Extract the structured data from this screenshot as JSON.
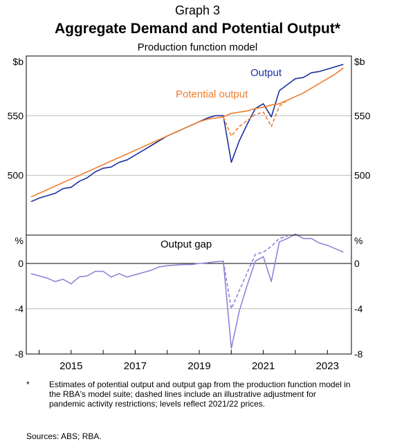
{
  "graph_number": "Graph 3",
  "title": "Aggregate Demand and Potential Output*",
  "subtitle": "Production function model",
  "footnote": {
    "marker": "*",
    "text": "Estimates of potential output and output gap from the production function model in the RBA's model suite; dashed lines include an illustrative adjustment for pandemic activity restrictions; levels reflect 2021/22 prices."
  },
  "sources": "Sources: ABS; RBA.",
  "colors": {
    "output": "#1a2f9e",
    "potential": "#f07c2a",
    "gap": "#9381d8",
    "axis": "#000000",
    "grid": "#bdbdbd"
  },
  "chart_data": [
    {
      "type": "line",
      "panel": "top",
      "xlim": [
        2013.6,
        2023.75
      ],
      "ylim": [
        450,
        600
      ],
      "y_unit_left": "$b",
      "y_unit_right": "$b",
      "yticks": [
        500,
        550
      ],
      "ytick_labels": [
        "500",
        "550"
      ],
      "grid": true,
      "series": [
        {
          "name": "Output",
          "color": "#1a2f9e",
          "style": "solid",
          "x": [
            2013.75,
            2014.0,
            2014.25,
            2014.5,
            2014.75,
            2015.0,
            2015.25,
            2015.5,
            2015.75,
            2016.0,
            2016.25,
            2016.5,
            2016.75,
            2017.0,
            2017.25,
            2017.5,
            2017.75,
            2018.0,
            2018.25,
            2018.5,
            2018.75,
            2019.0,
            2019.25,
            2019.5,
            2019.75,
            2020.0,
            2020.25,
            2020.5,
            2020.75,
            2021.0,
            2021.25,
            2021.5,
            2021.75,
            2022.0,
            2022.25,
            2022.5,
            2022.75,
            2023.0,
            2023.25,
            2023.5
          ],
          "y": [
            478,
            481,
            483,
            485,
            489,
            490,
            495,
            498,
            503,
            506,
            507,
            511,
            513,
            517,
            521,
            525,
            529,
            533,
            536,
            539,
            542,
            545,
            548,
            550,
            550,
            511,
            529,
            543,
            556,
            560,
            549,
            571,
            576,
            581,
            582,
            586,
            587,
            589,
            591,
            593
          ]
        },
        {
          "name": "Potential output",
          "color": "#f07c2a",
          "style": "solid",
          "x": [
            2013.75,
            2014.0,
            2014.25,
            2014.5,
            2014.75,
            2015.0,
            2015.25,
            2015.5,
            2015.75,
            2016.0,
            2016.25,
            2016.5,
            2016.75,
            2017.0,
            2017.25,
            2017.5,
            2017.75,
            2018.0,
            2018.25,
            2018.5,
            2018.75,
            2019.0,
            2019.25,
            2019.5,
            2019.75,
            2020.0,
            2020.25,
            2020.5,
            2020.75,
            2021.0,
            2021.25,
            2021.5,
            2021.75,
            2022.0,
            2022.25,
            2022.5,
            2022.75,
            2023.0,
            2023.25,
            2023.5
          ],
          "y": [
            482,
            485,
            488,
            491,
            494,
            497,
            500,
            503,
            506,
            509,
            512,
            515,
            518,
            521,
            524,
            527,
            530,
            533,
            536,
            539,
            542,
            545,
            547,
            548,
            549,
            552,
            553,
            554,
            556,
            557,
            559,
            560,
            563,
            566,
            569,
            573,
            577,
            581,
            585,
            590
          ]
        },
        {
          "name": "",
          "color": "#f07c2a",
          "style": "dashed",
          "x": [
            2019.75,
            2020.0,
            2020.25,
            2020.5,
            2020.75,
            2021.0,
            2021.25,
            2021.5,
            2021.75
          ],
          "y": [
            549,
            533,
            541,
            546,
            551,
            553,
            541,
            558,
            563
          ]
        }
      ],
      "annotations": [
        {
          "text": "Output",
          "color": "#1a2f9e"
        },
        {
          "text": "Potential output",
          "color": "#f07c2a"
        }
      ]
    },
    {
      "type": "line",
      "panel": "bottom",
      "title": "Output gap",
      "xlim": [
        2013.6,
        2023.75
      ],
      "ylim": [
        -8,
        2.5
      ],
      "y_unit_left": "%",
      "y_unit_right": "%",
      "yticks": [
        -8,
        -4,
        0
      ],
      "ytick_labels": [
        "-8",
        "-4",
        "0"
      ],
      "xticks": [
        2015,
        2017,
        2019,
        2021,
        2023
      ],
      "xtick_labels": [
        "2015",
        "2017",
        "2019",
        "2021",
        "2023"
      ],
      "grid": true,
      "series": [
        {
          "name": "",
          "color": "#9381d8",
          "style": "solid",
          "x": [
            2013.75,
            2014.0,
            2014.25,
            2014.5,
            2014.75,
            2015.0,
            2015.25,
            2015.5,
            2015.75,
            2016.0,
            2016.25,
            2016.5,
            2016.75,
            2017.0,
            2017.25,
            2017.5,
            2017.75,
            2018.0,
            2018.25,
            2018.5,
            2018.75,
            2019.0,
            2019.25,
            2019.5,
            2019.75,
            2020.0,
            2020.25,
            2020.5,
            2020.75,
            2021.0,
            2021.25,
            2021.5,
            2021.75,
            2022.0,
            2022.25,
            2022.5,
            2022.75,
            2023.0,
            2023.25,
            2023.5
          ],
          "y": [
            -0.9,
            -1.1,
            -1.3,
            -1.6,
            -1.4,
            -1.8,
            -1.2,
            -1.1,
            -0.7,
            -0.7,
            -1.2,
            -0.9,
            -1.2,
            -1.0,
            -0.8,
            -0.6,
            -0.3,
            -0.2,
            -0.15,
            -0.1,
            -0.1,
            0,
            0.05,
            0.15,
            0.2,
            -7.5,
            -4.2,
            -1.9,
            0.2,
            0.6,
            -1.6,
            1.9,
            2.2,
            2.6,
            2.2,
            2.2,
            1.8,
            1.6,
            1.3,
            1.0
          ]
        },
        {
          "name": "",
          "color": "#9381d8",
          "style": "dashed",
          "x": [
            2019.75,
            2020.0,
            2020.25,
            2020.5,
            2020.75,
            2021.0,
            2021.25,
            2021.5,
            2021.75
          ],
          "y": [
            0.2,
            -4.0,
            -2.4,
            -0.8,
            0.8,
            1.0,
            1.5,
            2.2,
            2.4
          ]
        }
      ]
    }
  ]
}
